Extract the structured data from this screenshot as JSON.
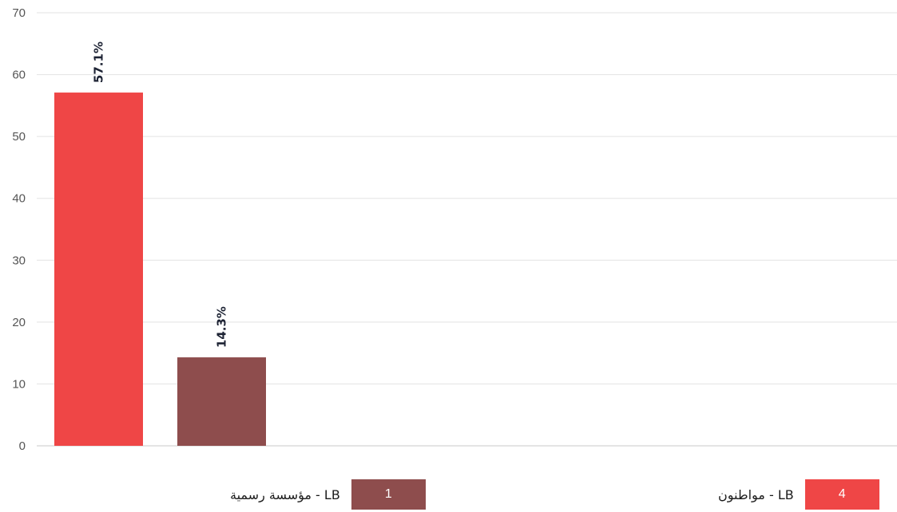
{
  "chart_data": {
    "type": "bar",
    "ylim": [
      0,
      70
    ],
    "yticks": [
      0,
      10,
      20,
      30,
      40,
      50,
      60,
      70
    ],
    "grid": true,
    "series": [
      {
        "name": "LB - مواطنون",
        "value": 57.1,
        "label": "57.1%",
        "count": "4",
        "color": "#ef4646"
      },
      {
        "name": "LB - مؤسسة رسمية",
        "value": 14.3,
        "label": "14.3%",
        "count": "1",
        "color": "#8e4d4d"
      }
    ],
    "legend_position": "bottom"
  }
}
